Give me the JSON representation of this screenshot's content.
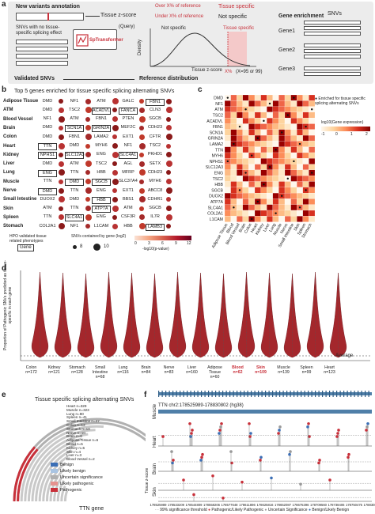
{
  "panels": {
    "a": "a",
    "b": "b",
    "c": "c",
    "d": "d",
    "e": "e",
    "f": "f"
  },
  "panel_a": {
    "new_variants": "New variants annotation",
    "tissue_zscore": "Tissue z-score",
    "over": "Over X% of reference",
    "under": "Under X% of reference",
    "tissue_specific": "Tissue specific",
    "not_specific": "Not specific",
    "gene_enrichment": "Gene enrichment",
    "snvs_no_effect": "SNVs with no tissue-specific splicing effect",
    "query": "(Query)",
    "model": "SpTransformer",
    "curve_not_specific": "Not specific",
    "curve_tissue_specific": "Tissue specific",
    "density": "Density",
    "axis_tissue_z": "Tissue z-score",
    "xpct": "X%",
    "xnote": "(X=95 or 99)",
    "validated": "Validated SNVs",
    "reference": "Reference distribution",
    "snvs": "SNVs",
    "genes": [
      "Gene1",
      "Gene2",
      "Gene3"
    ]
  },
  "panel_b": {
    "title": "Top 5 genes enriched for tissue specific splicing alternating SNVs",
    "rows": [
      {
        "tissue": "Adipose Tissue",
        "genes": [
          "DMD",
          "NF1",
          "ATM",
          "GALC",
          "FBN1"
        ]
      },
      {
        "tissue": "ATM",
        "genes": [
          "DMD",
          "TSC2",
          "ACADVL",
          "FANCA",
          "CLN3"
        ]
      },
      {
        "tissue": "Blood Vessel",
        "genes": [
          "NF1",
          "ATM",
          "FBN1",
          "PTEN",
          "SGCB"
        ]
      },
      {
        "tissue": "Brain",
        "genes": [
          "DMD",
          "SCN1A",
          "GRIN2A",
          "MEF2C",
          "CDH23"
        ]
      },
      {
        "tissue": "Colon",
        "genes": [
          "DMD",
          "FBN1",
          "LAMA2",
          "EXT1",
          "CFTR"
        ]
      },
      {
        "tissue": "Heart",
        "genes": [
          "TTN",
          "DMD",
          "MYH6",
          "NF1",
          "TSC2"
        ]
      },
      {
        "tissue": "Kidney",
        "genes": [
          "NPHS1",
          "SLC12A3",
          "ENG",
          "SLC4A1",
          "PKHD1"
        ]
      },
      {
        "tissue": "Liver",
        "genes": [
          "DMD",
          "ATM",
          "TSC2",
          "AGL",
          "SETX"
        ]
      },
      {
        "tissue": "Lung",
        "genes": [
          "ENG",
          "TTN",
          "HBB",
          "MFRP",
          "CDH23"
        ]
      },
      {
        "tissue": "Muscle",
        "genes": [
          "TTN",
          "DMD",
          "SGCB",
          "SLC37A4",
          "MYH6"
        ]
      },
      {
        "tissue": "Nerve",
        "genes": [
          "DMD",
          "TTN",
          "ENG",
          "EXT1",
          "ABCC8"
        ]
      },
      {
        "tissue": "Small Intestine",
        "genes": [
          "DUOX2",
          "DMD",
          "HBB",
          "BBS1",
          "CDHR1"
        ]
      },
      {
        "tissue": "Skin",
        "genes": [
          "ATM",
          "TTN",
          "ATP7A",
          "ATM",
          "SGCB"
        ]
      },
      {
        "tissue": "Spleen",
        "genes": [
          "TTN",
          "SLC4A1",
          "ENG",
          "CSF3R",
          "IL7R"
        ]
      },
      {
        "tissue": "Stomach",
        "genes": [
          "COL2A1",
          "NF1",
          "L1CAM",
          "HBB",
          "LAMB3"
        ]
      }
    ],
    "legend_hpo": "HPO validated tissue related phenotypes",
    "legend_gene": "Gene",
    "legend_snvs": "SNVs contained by gene (log2)",
    "legend_sizes": [
      "8",
      "10"
    ],
    "legend_pval": "-log10(p-value)",
    "pval_ticks": [
      "0",
      "3",
      "6",
      "9",
      "12"
    ]
  },
  "panel_c": {
    "genes": [
      "DMD",
      "NF1",
      "ATM",
      "TSC2",
      "ACADVL",
      "FBN1",
      "SCN1A",
      "GRIN2A",
      "LAMA2",
      "TTN",
      "MYH6",
      "NPHS1",
      "SLC12A3",
      "ENG",
      "TSC2",
      "HBB",
      "SGCB",
      "DUOX2",
      "ATP7A",
      "SLC4A1",
      "COL2A1",
      "L1CAM"
    ],
    "tissues": [
      "Adipose Tissue",
      "Blood",
      "Blood Vessel",
      "Brain",
      "Colon",
      "Heart",
      "Kidney",
      "Liver",
      "Lung",
      "Muscle",
      "Nerve",
      "Small Intestine",
      "Skin",
      "Spleen",
      "Stomach"
    ],
    "legend_star": "Enriched for tissue specific splicing alternating SNVs",
    "legend_title": "log10(Gene expression)",
    "ticks": [
      "-1",
      "0",
      "1",
      "2"
    ]
  },
  "panel_d": {
    "ylabel": "Proportion of Pathogenic SNVs predicted as tissue-specific in each gene",
    "average": "Average",
    "tissues": [
      {
        "name": "Colon",
        "n": "n=172",
        "bold": false
      },
      {
        "name": "Kidney",
        "n": "n=121",
        "bold": false
      },
      {
        "name": "Stomach",
        "n": "n=128",
        "bold": false
      },
      {
        "name": "Small Intestine",
        "n": "n=68",
        "bold": false
      },
      {
        "name": "Lung",
        "n": "n=116",
        "bold": false
      },
      {
        "name": "Brain",
        "n": "n=84",
        "bold": false
      },
      {
        "name": "Nerve",
        "n": "n=83",
        "bold": false
      },
      {
        "name": "Liver",
        "n": "n=160",
        "bold": false
      },
      {
        "name": "Adipose Tissue",
        "n": "n=60",
        "bold": false
      },
      {
        "name": "Blood",
        "n": "n=62",
        "bold": true
      },
      {
        "name": "Skin",
        "n": "n=109",
        "bold": true
      },
      {
        "name": "Muscle",
        "n": "n=139",
        "bold": false
      },
      {
        "name": "Spleen",
        "n": "n=99",
        "bold": false
      },
      {
        "name": "Heart",
        "n": "n=123",
        "bold": false
      }
    ]
  },
  "panel_e": {
    "title": "Tissue specific splicing alternating SNVs",
    "rings": [
      "Heart n=329",
      "Muscle n=323",
      "Lung n=80",
      "Spleen n=41",
      "Small Intestine n=37",
      "Colon n=12",
      "Stomach n=10",
      "Nerve n=10",
      "Brain n=6",
      "Adipose Tissue n=6",
      "Blood n=5",
      "Kidney n=5",
      "Skin n=4",
      "Liver n=3",
      "Blood Vessel n=2"
    ],
    "legend": [
      "Benign",
      "Likely benign",
      "Uncertain significance",
      "Likely pathogenic",
      "Pathogenic"
    ],
    "legend_colors": [
      "#3b6fb6",
      "#a9c4e2",
      "#b0b0b0",
      "#e5928f",
      "#c8303a"
    ],
    "gene": "TTN gene"
  },
  "panel_f": {
    "locus": "TTN chr2:178525989-178830802 (hg38)",
    "tracks": [
      "Muscle",
      "Heart",
      "Brain",
      "Skin"
    ],
    "ylabel": "Tissue z-score",
    "xticks": [
      "178525989",
      "178533209",
      "178544809",
      "178558206",
      "178577648",
      "178611896",
      "178625816",
      "178652087",
      "178675396",
      "178709560",
      "178738406",
      "178750475",
      "178830802"
    ],
    "legend_threshold": "99% significance threshold",
    "legend_patho": "Pathogenic/Likely Pathogenic",
    "legend_uncertain": "Uncertain Significance",
    "legend_benign": "Benign/Likely Benign"
  }
}
